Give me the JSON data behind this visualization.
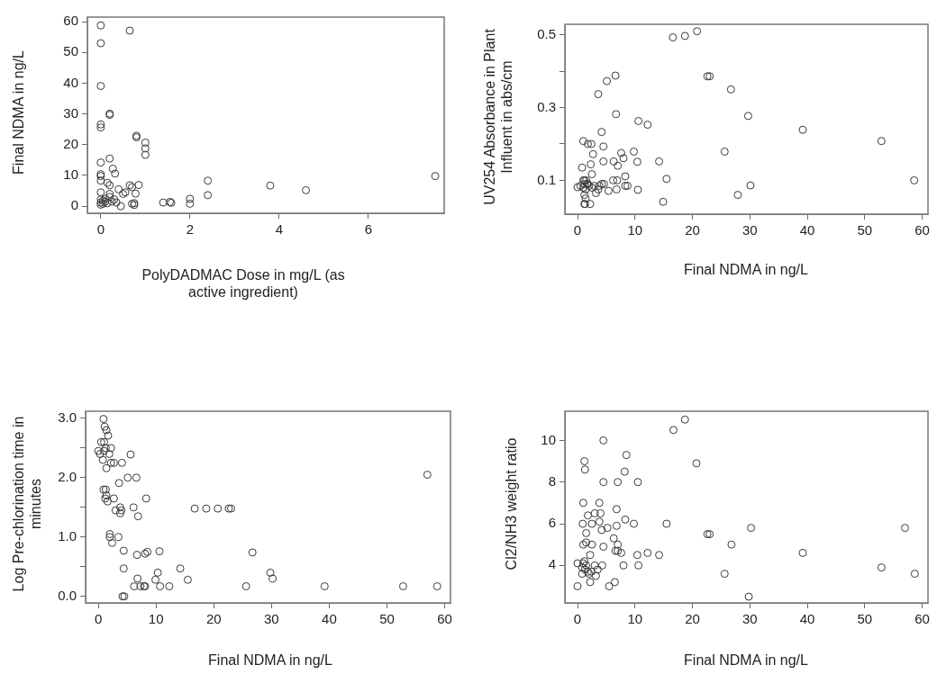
{
  "chart_data": [
    {
      "type": "scatter",
      "xlabel": "PolyDADMAC Dose in mg/L (as active ingredient)",
      "ylabel": "Final NDMA in ng/L",
      "marker": "circle",
      "color": "#3a3a3a",
      "xlim": [
        -0.3,
        7.7
      ],
      "ylim": [
        -2.3,
        61.5
      ],
      "xticks": [
        0,
        2,
        4,
        6
      ],
      "yticks": [
        0,
        10,
        20,
        30,
        40,
        50,
        60
      ],
      "grid": false,
      "legend": false,
      "x": [
        0,
        0,
        0.65,
        0,
        0,
        0,
        0.2,
        0.2,
        0.8,
        0.8,
        1.0,
        1.0,
        1.0,
        0,
        0.2,
        0.27,
        0.32,
        0,
        0,
        0,
        0.15,
        0.2,
        7.5,
        2.4,
        2.4,
        3.8,
        4.6,
        0.65,
        0.7,
        0.85,
        0.4,
        0.5,
        0.55,
        0.78,
        0.45,
        0.75,
        0.75,
        0.7,
        1.4,
        1.55,
        1.58,
        2.0,
        2.0,
        0,
        0,
        0,
        0,
        0.05,
        0.1,
        0.15,
        0.2,
        0.25,
        0.3,
        0.35,
        0.2,
        0.1,
        0.05
      ],
      "values": [
        58.8,
        53,
        57.1,
        39.1,
        26.6,
        25.6,
        30.1,
        29.7,
        22.9,
        22.4,
        20.7,
        18.8,
        16.7,
        14.2,
        15.5,
        12.2,
        10.6,
        10.4,
        9.8,
        8.3,
        7.6,
        6.8,
        9.8,
        8.3,
        3.6,
        6.7,
        5.2,
        6.8,
        6.2,
        6.9,
        5.5,
        4,
        4.5,
        4.1,
        0,
        1,
        0.4,
        0.8,
        1.2,
        1.4,
        1.1,
        2.4,
        0.8,
        4.5,
        2.2,
        1.2,
        0.5,
        1.8,
        2.4,
        1,
        3,
        1.5,
        2.2,
        1.2,
        4,
        1.5,
        0.8
      ]
    },
    {
      "type": "scatter",
      "xlabel": "Final NDMA in ng/L",
      "ylabel": "UV254 Absorbance in Plant Influent  in abs/cm",
      "marker": "circle",
      "color": "#3a3a3a",
      "xlim": [
        -2.2,
        61
      ],
      "ylim": [
        0.007,
        0.529
      ],
      "xticks": [
        0,
        10,
        20,
        30,
        40,
        50,
        60
      ],
      "yticks": [
        0.1,
        {
          "value": 0.2,
          "label": null
        },
        0.3,
        {
          "value": 0.4,
          "label": null
        },
        0.5
      ],
      "grid": false,
      "legend": false,
      "x": [
        20.8,
        16.6,
        18.7,
        6.6,
        5.1,
        3.6,
        22.6,
        23.0,
        26.7,
        6.7,
        29.7,
        10.6,
        12.2,
        39.2,
        4.2,
        52.9,
        1.0,
        1.8,
        2.4,
        4.5,
        9.8,
        25.6,
        2.7,
        7.6,
        8.0,
        4.5,
        6.3,
        10.4,
        14.2,
        2.3,
        0.8,
        7.0,
        2.5,
        8.3,
        6.2,
        6.9,
        15.5,
        58.6,
        30.1,
        8.3,
        8.7,
        10.5,
        6.8,
        5.4,
        27.9,
        14.9,
        0,
        1.0,
        1.2,
        1.5,
        1.8,
        1.2,
        1.0,
        1.4,
        1.2,
        1.4,
        1.2,
        1.3,
        2.2,
        2.5,
        2.9,
        3.2,
        3.6,
        3.8,
        4.2,
        4.6,
        0.5,
        1.7,
        2.0
      ],
      "values": [
        0.51,
        0.493,
        0.497,
        0.388,
        0.373,
        0.337,
        0.386,
        0.386,
        0.35,
        0.282,
        0.277,
        0.263,
        0.253,
        0.239,
        0.233,
        0.208,
        0.208,
        0.2,
        0.2,
        0.193,
        0.179,
        0.179,
        0.172,
        0.175,
        0.161,
        0.152,
        0.152,
        0.151,
        0.152,
        0.144,
        0.135,
        0.14,
        0.117,
        0.111,
        0.1,
        0.1,
        0.104,
        0.1,
        0.086,
        0.085,
        0.085,
        0.074,
        0.075,
        0.071,
        0.06,
        0.041,
        0.081,
        0.1,
        0.1,
        0.1,
        0.09,
        0.09,
        0.08,
        0.075,
        0.06,
        0.05,
        0.035,
        0.035,
        0.035,
        0.08,
        0.085,
        0.065,
        0.075,
        0.085,
        0.09,
        0.09,
        0.085,
        0.09,
        0.085
      ]
    },
    {
      "type": "scatter",
      "xlabel": "Final NDMA in ng/L",
      "ylabel": "Log Pre-chlorination time in minutes",
      "marker": "circle",
      "color": "#3a3a3a",
      "xlim": [
        -2.2,
        61
      ],
      "ylim": [
        -0.11,
        3.12
      ],
      "xticks": [
        0,
        10,
        20,
        30,
        40,
        50,
        60
      ],
      "yticks": [
        {
          "value": 0,
          "label": "0.0"
        },
        {
          "value": 0.5,
          "label": null
        },
        {
          "value": 1,
          "label": "1.0"
        },
        {
          "value": 1.5,
          "label": null
        },
        {
          "value": 2,
          "label": "2.0"
        },
        {
          "value": 2.5,
          "label": null
        },
        {
          "value": 3,
          "label": "3.0"
        }
      ],
      "grid": false,
      "legend": false,
      "x": [
        0.9,
        1.1,
        1.4,
        1.7,
        1.0,
        0.5,
        1.3,
        0,
        0.3,
        1.0,
        2.2,
        1.9,
        0.8,
        1.4,
        2.2,
        2.7,
        4.1,
        5.6,
        3.6,
        5.1,
        6.6,
        57.0,
        0.9,
        1.3,
        1.2,
        1.4,
        1.6,
        2.7,
        8.3,
        3.0,
        3.8,
        4.0,
        3.8,
        6.1,
        6.9,
        16.7,
        18.7,
        20.7,
        22.6,
        23.0,
        2.0,
        2.0,
        2.4,
        3.5,
        4.4,
        6.7,
        8.1,
        8.5,
        10.6,
        26.7,
        4.4,
        14.2,
        29.8,
        30.2,
        10.3,
        9.9,
        15.5,
        6.8,
        6.2,
        7.3,
        7.9,
        8.1,
        10.7,
        12.3,
        25.6,
        39.2,
        52.8,
        58.7,
        4.2,
        4.5
      ],
      "values": [
        2.99,
        2.86,
        2.8,
        2.71,
        2.6,
        2.6,
        2.5,
        2.45,
        2.4,
        2.45,
        2.5,
        2.4,
        2.3,
        2.16,
        2.25,
        2.25,
        2.25,
        2.39,
        1.91,
        2.0,
        2.0,
        2.05,
        1.8,
        1.8,
        1.65,
        1.7,
        1.6,
        1.65,
        1.65,
        1.45,
        1.5,
        1.45,
        1.4,
        1.5,
        1.35,
        1.48,
        1.48,
        1.48,
        1.48,
        1.48,
        1.05,
        1.0,
        0.9,
        1.0,
        0.77,
        0.7,
        0.72,
        0.75,
        0.76,
        0.74,
        0.47,
        0.47,
        0.4,
        0.3,
        0.4,
        0.28,
        0.28,
        0.3,
        0.17,
        0.17,
        0.17,
        0.17,
        0.17,
        0.17,
        0.17,
        0.17,
        0.17,
        0.17,
        0,
        0
      ]
    },
    {
      "type": "scatter",
      "xlabel": "Final NDMA in ng/L",
      "ylabel": "Cl2/NH3  weight ratio",
      "marker": "circle",
      "color": "#3a3a3a",
      "xlim": [
        -2.2,
        61
      ],
      "ylim": [
        2.2,
        11.4
      ],
      "xticks": [
        0,
        10,
        20,
        30,
        40,
        50,
        60
      ],
      "yticks": [
        4,
        6,
        8,
        10
      ],
      "grid": false,
      "legend": false,
      "x": [
        18.7,
        16.7,
        4.5,
        8.5,
        20.7,
        1.2,
        1.3,
        8.2,
        4.5,
        7.0,
        10.5,
        1.0,
        3.8,
        6.8,
        1.8,
        3.0,
        4.0,
        3.8,
        8.3,
        0.9,
        2.5,
        9.8,
        15.5,
        4.2,
        5.2,
        6.8,
        30.2,
        57.0,
        1.5,
        22.6,
        23.0,
        6.3,
        1.0,
        1.5,
        2.5,
        7.0,
        26.8,
        4.5,
        7.0,
        7.6,
        6.6,
        12.2,
        10.4,
        14.2,
        39.2,
        2.2,
        0,
        1.0,
        1.2,
        1.5,
        0.8,
        1.3,
        1.8,
        2.0,
        2.4,
        3.0,
        4.3,
        3.5,
        3.2,
        2.2,
        8.0,
        10.6,
        0.8,
        25.6,
        52.9,
        58.7,
        0,
        5.5,
        6.5,
        29.8
      ],
      "values": [
        11.0,
        10.5,
        10,
        9.3,
        8.9,
        9.0,
        8.6,
        8.5,
        8,
        8,
        8,
        7.0,
        7.0,
        6.7,
        6.4,
        6.5,
        6.5,
        6.1,
        6.2,
        6.0,
        6.0,
        6.0,
        6.0,
        5.7,
        5.8,
        5.9,
        5.8,
        5.8,
        5.55,
        5.5,
        5.5,
        5.3,
        5.0,
        5.1,
        5.0,
        5.0,
        5.0,
        4.9,
        4.7,
        4.6,
        4.7,
        4.6,
        4.5,
        4.5,
        4.6,
        4.5,
        4.1,
        4.1,
        4.2,
        4.0,
        3.9,
        3.8,
        3.7,
        3.6,
        3.7,
        4.0,
        4.0,
        3.8,
        3.5,
        3.2,
        4.0,
        4.0,
        3.6,
        3.6,
        3.9,
        3.6,
        3.0,
        3.0,
        3.2,
        2.5
      ]
    }
  ]
}
